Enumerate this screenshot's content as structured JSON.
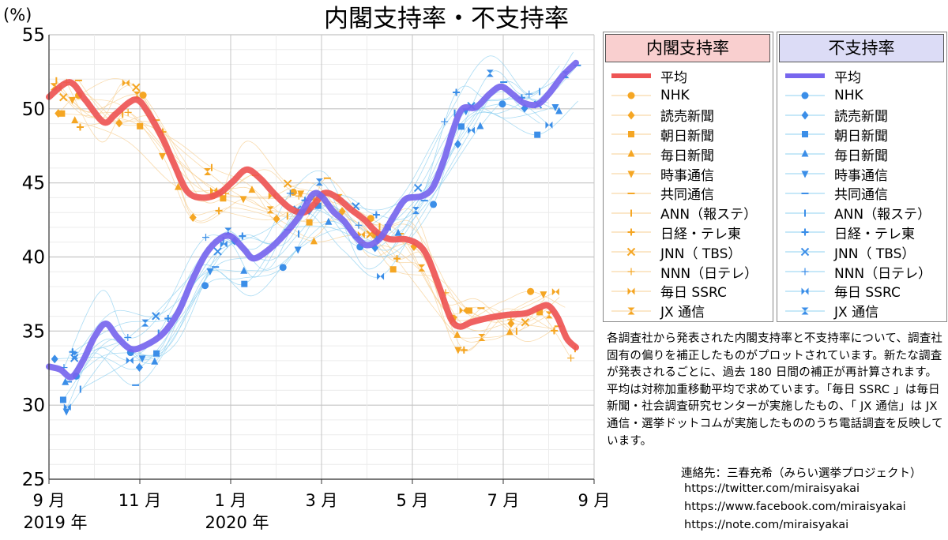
{
  "chart_data": {
    "type": "line",
    "title": "内閣支持率・不支持率",
    "ylabel": "(%)",
    "ylim": [
      25,
      55
    ],
    "yticks": [
      25,
      30,
      35,
      40,
      45,
      50,
      55
    ],
    "xrange_months": [
      0,
      12
    ],
    "xticks": [
      {
        "m": 0,
        "label": "9 月",
        "sub": "2019 年"
      },
      {
        "m": 2,
        "label": "11 月",
        "sub": ""
      },
      {
        "m": 4,
        "label": "1 月",
        "sub": "2020 年"
      },
      {
        "m": 6,
        "label": "3 月",
        "sub": ""
      },
      {
        "m": 8,
        "label": "5 月",
        "sub": ""
      },
      {
        "m": 10,
        "label": "7 月",
        "sub": ""
      },
      {
        "m": 12,
        "label": "9 月",
        "sub": ""
      }
    ],
    "series": [
      {
        "name": "内閣支持率 平均",
        "color": "#ee5555",
        "points": [
          [
            0,
            50.8
          ],
          [
            0.45,
            51.8
          ],
          [
            0.8,
            50.6
          ],
          [
            1.2,
            49.1
          ],
          [
            1.45,
            49.6
          ],
          [
            1.75,
            50.4
          ],
          [
            1.95,
            50.6
          ],
          [
            2.15,
            49.9
          ],
          [
            2.5,
            48.0
          ],
          [
            2.75,
            46.3
          ],
          [
            3.05,
            44.4
          ],
          [
            3.4,
            44.0
          ],
          [
            3.75,
            44.3
          ],
          [
            4.05,
            45.1
          ],
          [
            4.35,
            45.9
          ],
          [
            4.65,
            45.3
          ],
          [
            4.95,
            44.3
          ],
          [
            5.3,
            43.3
          ],
          [
            5.6,
            43.0
          ],
          [
            5.85,
            43.6
          ],
          [
            6.05,
            44.3
          ],
          [
            6.3,
            44.1
          ],
          [
            6.65,
            43.2
          ],
          [
            6.95,
            42.5
          ],
          [
            7.2,
            41.7
          ],
          [
            7.5,
            41.2
          ],
          [
            7.85,
            41.2
          ],
          [
            8.15,
            40.8
          ],
          [
            8.35,
            39.9
          ],
          [
            8.6,
            37.9
          ],
          [
            8.85,
            35.8
          ],
          [
            9.05,
            35.3
          ],
          [
            9.3,
            35.6
          ],
          [
            9.7,
            35.9
          ],
          [
            10.1,
            36.1
          ],
          [
            10.5,
            36.2
          ],
          [
            10.8,
            36.6
          ],
          [
            11.0,
            36.7
          ],
          [
            11.2,
            35.9
          ],
          [
            11.4,
            34.5
          ],
          [
            11.6,
            33.9
          ]
        ]
      },
      {
        "name": "不支持率 平均",
        "color": "#7766ee",
        "points": [
          [
            0,
            32.6
          ],
          [
            0.25,
            32.4
          ],
          [
            0.5,
            31.9
          ],
          [
            0.75,
            33.0
          ],
          [
            1.0,
            34.6
          ],
          [
            1.25,
            35.5
          ],
          [
            1.5,
            34.6
          ],
          [
            1.8,
            33.8
          ],
          [
            2.1,
            34.0
          ],
          [
            2.5,
            34.8
          ],
          [
            2.85,
            36.3
          ],
          [
            3.15,
            38.4
          ],
          [
            3.45,
            40.2
          ],
          [
            3.75,
            41.2
          ],
          [
            4.0,
            41.4
          ],
          [
            4.3,
            40.5
          ],
          [
            4.5,
            39.9
          ],
          [
            4.8,
            40.4
          ],
          [
            5.15,
            41.4
          ],
          [
            5.5,
            42.7
          ],
          [
            5.8,
            44.2
          ],
          [
            6.0,
            44.1
          ],
          [
            6.25,
            43.1
          ],
          [
            6.5,
            42.4
          ],
          [
            6.75,
            41.4
          ],
          [
            7.0,
            40.8
          ],
          [
            7.3,
            41.3
          ],
          [
            7.6,
            42.8
          ],
          [
            7.85,
            43.9
          ],
          [
            8.2,
            44.1
          ],
          [
            8.45,
            44.7
          ],
          [
            8.7,
            46.6
          ],
          [
            8.9,
            48.6
          ],
          [
            9.1,
            50.0
          ],
          [
            9.4,
            50.1
          ],
          [
            9.7,
            51.0
          ],
          [
            9.95,
            51.5
          ],
          [
            10.2,
            51.0
          ],
          [
            10.45,
            50.4
          ],
          [
            10.75,
            50.3
          ],
          [
            11.0,
            51.0
          ],
          [
            11.3,
            52.2
          ],
          [
            11.6,
            53.1
          ]
        ]
      }
    ]
  },
  "legend": {
    "support": {
      "title": "内閣支持率",
      "color": "#ee5555",
      "items": [
        {
          "icon": "line",
          "label": "平均"
        },
        {
          "icon": "circle",
          "label": "NHK"
        },
        {
          "icon": "diamond",
          "label": "読売新聞"
        },
        {
          "icon": "square",
          "label": "朝日新聞"
        },
        {
          "icon": "triangle-up",
          "label": "毎日新聞"
        },
        {
          "icon": "triangle-down",
          "label": "時事通信"
        },
        {
          "icon": "dash",
          "label": "共同通信"
        },
        {
          "icon": "vbar",
          "label": "ANN（報ステ）"
        },
        {
          "icon": "star",
          "label": "日経・テレ東"
        },
        {
          "icon": "x",
          "label": "JNN（ TBS）"
        },
        {
          "icon": "plus",
          "label": "NNN（日テレ）"
        },
        {
          "icon": "bowtie",
          "label": "毎日 SSRC"
        },
        {
          "icon": "hourglass",
          "label": "JX 通信"
        }
      ]
    },
    "disapproval": {
      "title": "不支持率",
      "color": "#7766ee",
      "items": [
        {
          "icon": "line",
          "label": "平均"
        },
        {
          "icon": "circle",
          "label": "NHK"
        },
        {
          "icon": "diamond",
          "label": "読売新聞"
        },
        {
          "icon": "square",
          "label": "朝日新聞"
        },
        {
          "icon": "triangle-up",
          "label": "毎日新聞"
        },
        {
          "icon": "triangle-down",
          "label": "時事通信"
        },
        {
          "icon": "dash",
          "label": "共同通信"
        },
        {
          "icon": "vbar",
          "label": "ANN（報ステ）"
        },
        {
          "icon": "star",
          "label": "日経・テレ東"
        },
        {
          "icon": "x",
          "label": "JNN（ TBS）"
        },
        {
          "icon": "plus",
          "label": "NNN（日テレ）"
        },
        {
          "icon": "bowtie",
          "label": "毎日 SSRC"
        },
        {
          "icon": "hourglass",
          "label": "JX 通信"
        }
      ]
    }
  },
  "note": "各調査社から発表された内閣支持率と不支持率について、調査社固有の偏りを補正したものがプロットされています。新たな調査が発表されるごとに、過去 180 日間の補正が再計算されます。平均は対称加重移動平均で求めています。「毎日 SSRC 」は毎日新聞・社会調査研究センターが実施したもの、「 JX 通信」は JX 通信・選挙ドットコムが実施したもののうち電話調査を反映しています。",
  "contact": {
    "label": "連絡先：三春充希（みらい選挙プロジェクト）",
    "twitter": "https://twitter.com/miraisyakai",
    "facebook": "https://www.facebook.com/miraisyakai",
    "note": "https://note.com/miraisyakai"
  },
  "colors": {
    "support_marker": "#f5a623",
    "disapproval_marker": "#3b8ee8",
    "support_head_bg": "#f9cfcf",
    "disapproval_head_bg": "#dcdcf6"
  }
}
